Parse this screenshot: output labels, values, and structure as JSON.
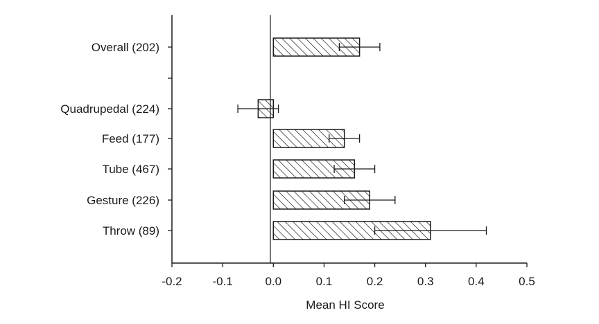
{
  "chart_data": {
    "type": "bar",
    "orientation": "horizontal",
    "title": "",
    "xlabel": "Mean HI Score",
    "ylabel": "",
    "xlim": [
      -0.2,
      0.5
    ],
    "xticks": [
      "-0.2",
      "-0.1",
      "0.0",
      "0.1",
      "0.2",
      "0.3",
      "0.4",
      "0.5"
    ],
    "grid": false,
    "bar_fill": "diagonal-hatch",
    "categories": [
      "Overall (202)",
      "Quadrupedal (224)",
      "Feed (177)",
      "Tube (467)",
      "Gesture (226)",
      "Throw (89)"
    ],
    "values": [
      0.17,
      -0.03,
      0.14,
      0.16,
      0.19,
      0.31
    ],
    "error_low": [
      0.13,
      -0.07,
      0.11,
      0.12,
      0.14,
      0.2
    ],
    "error_high": [
      0.21,
      0.01,
      0.17,
      0.2,
      0.24,
      0.42
    ],
    "colors": {
      "ink": "#1a1a1a",
      "background": "#ffffff"
    }
  }
}
